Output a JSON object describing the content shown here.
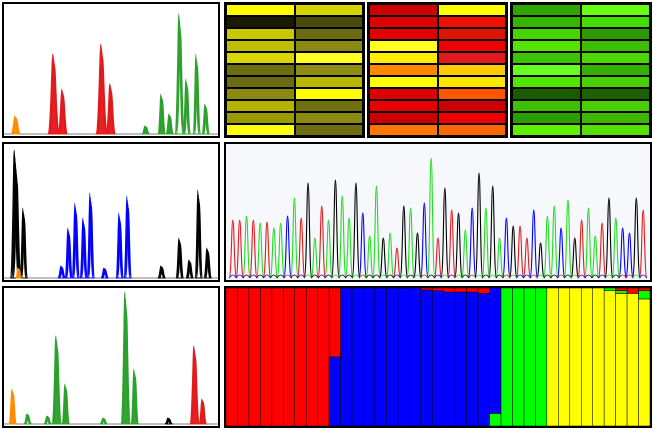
{
  "figure": {
    "background": "#ffffff",
    "border_color": "#000000",
    "peak_panels": [
      {
        "id": "a",
        "colors": [
          "#e31a1c",
          "#2ca02c",
          "#ff8c00"
        ]
      },
      {
        "id": "b",
        "colors": [
          "#000000",
          "#0000ff",
          "#ff8c00"
        ]
      },
      {
        "id": "c",
        "colors": [
          "#2ca02c",
          "#e31a1c",
          "#ff8c00"
        ]
      }
    ],
    "heatmaps": [
      {
        "id": "yellow",
        "rows": 11,
        "cols": 2,
        "cells": [
          [
            "#ffff00",
            "#d4d400"
          ],
          [
            "#1a1a00",
            "#4a4a0a"
          ],
          [
            "#c8c800",
            "#6b6b10"
          ],
          [
            "#bebe00",
            "#8a8a12"
          ],
          [
            "#d8d800",
            "#ffff20"
          ],
          [
            "#6e6e10",
            "#8d8d15"
          ],
          [
            "#6a6a12",
            "#b8b800"
          ],
          [
            "#8a8a10",
            "#ffff00"
          ],
          [
            "#b3b300",
            "#6f6f10"
          ],
          [
            "#9a9a05",
            "#8a8a10"
          ],
          [
            "#ffff10",
            "#6e6e10"
          ]
        ]
      },
      {
        "id": "red",
        "rows": 11,
        "cols": 2,
        "cells": [
          [
            "#cc0000",
            "#ffff00"
          ],
          [
            "#dd0000",
            "#ee1100"
          ],
          [
            "#e00000",
            "#dd1500"
          ],
          [
            "#ffff20",
            "#ee0000"
          ],
          [
            "#ffee00",
            "#e31a1c"
          ],
          [
            "#ff8800",
            "#ffcc00"
          ],
          [
            "#ffff00",
            "#ffe600"
          ],
          [
            "#dd0000",
            "#ff5500"
          ],
          [
            "#e80000",
            "#cc0000"
          ],
          [
            "#cc0000",
            "#ee0000"
          ],
          [
            "#ff7700",
            "#ff6600"
          ]
        ]
      },
      {
        "id": "green",
        "rows": 11,
        "cols": 2,
        "cells": [
          [
            "#2ea800",
            "#66ff11"
          ],
          [
            "#33b500",
            "#44dd00"
          ],
          [
            "#44d400",
            "#2b9a00"
          ],
          [
            "#55e400",
            "#3bbd00"
          ],
          [
            "#3dc400",
            "#4ad800"
          ],
          [
            "#66ff22",
            "#35b000"
          ],
          [
            "#50e600",
            "#47d100"
          ],
          [
            "#1a5a00",
            "#1c6000"
          ],
          [
            "#3ec000",
            "#48d000"
          ],
          [
            "#2c9d00",
            "#3db800"
          ],
          [
            "#5af000",
            "#55e000"
          ]
        ]
      }
    ],
    "structure_plot": {
      "colors": [
        "#ff0000",
        "#0000ff",
        "#00ff00",
        "#ffff00"
      ],
      "bars": [
        [
          1,
          0,
          0,
          0
        ],
        [
          1,
          0,
          0,
          0
        ],
        [
          1,
          0,
          0,
          0
        ],
        [
          1,
          0,
          0,
          0
        ],
        [
          1,
          0,
          0,
          0
        ],
        [
          1,
          0,
          0,
          0
        ],
        [
          1,
          0,
          0,
          0
        ],
        [
          1,
          0,
          0,
          0
        ],
        [
          1,
          0,
          0,
          0
        ],
        [
          0.5,
          0.5,
          0,
          0
        ],
        [
          0,
          1,
          0,
          0
        ],
        [
          0,
          1,
          0,
          0
        ],
        [
          0,
          1,
          0,
          0
        ],
        [
          0,
          1,
          0,
          0
        ],
        [
          0,
          1,
          0,
          0
        ],
        [
          0,
          1,
          0,
          0
        ],
        [
          0,
          1,
          0,
          0
        ],
        [
          0.015,
          0.985,
          0,
          0
        ],
        [
          0.02,
          0.98,
          0,
          0
        ],
        [
          0.03,
          0.97,
          0,
          0
        ],
        [
          0.03,
          0.97,
          0,
          0
        ],
        [
          0.03,
          0.97,
          0,
          0
        ],
        [
          0.04,
          0.96,
          0,
          0
        ],
        [
          0,
          0.91,
          0.09,
          0
        ],
        [
          0,
          0,
          1,
          0
        ],
        [
          0,
          0,
          1,
          0
        ],
        [
          0,
          0,
          1,
          0
        ],
        [
          0,
          0,
          1,
          0
        ],
        [
          0,
          0,
          0,
          1
        ],
        [
          0,
          0,
          0,
          1
        ],
        [
          0,
          0,
          0,
          1
        ],
        [
          0,
          0,
          0,
          1
        ],
        [
          0,
          0,
          0,
          1
        ],
        [
          0,
          0,
          0.02,
          0.98
        ],
        [
          0.02,
          0,
          0.02,
          0.96
        ],
        [
          0.04,
          0,
          0,
          0.96
        ],
        [
          0.02,
          0,
          0.06,
          0.92
        ]
      ]
    }
  }
}
